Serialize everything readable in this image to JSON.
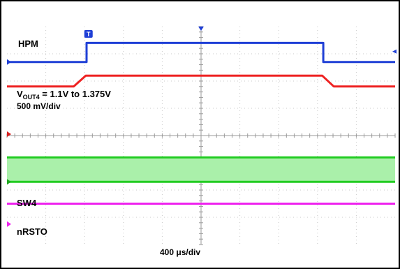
{
  "chart_data": {
    "type": "line",
    "title": "",
    "xlabel": "",
    "ylabel": "",
    "timebase": {
      "value": "400",
      "unit": "μs/div"
    },
    "divisions": {
      "x": 10,
      "y": 8
    },
    "grid": true,
    "grid_color": "#c8c8c8",
    "trigger_marker": {
      "label": "T",
      "x_div": 2.1
    },
    "series": [
      {
        "name": "HPM",
        "color": "#1f3fd6",
        "marker_color": "#1f3fd6",
        "marker_y_div": 1.3,
        "points": [
          [
            0,
            1.3
          ],
          [
            2.05,
            1.3
          ],
          [
            2.05,
            0.6
          ],
          [
            8.15,
            0.6
          ],
          [
            8.15,
            1.3
          ],
          [
            10,
            1.3
          ]
        ]
      },
      {
        "name": "V_OUT4",
        "label_main": "V",
        "label_sub": "OUT4",
        "label_rest": " = 1.1V to 1.375V",
        "scale": "500 mV/div",
        "color": "#ee2222",
        "marker_color": "#d62020",
        "marker_y_div": 3.95,
        "points": [
          [
            0,
            2.2
          ],
          [
            1.72,
            2.2
          ],
          [
            2.03,
            1.8
          ],
          [
            8.12,
            1.8
          ],
          [
            8.42,
            2.2
          ],
          [
            10,
            2.2
          ]
        ]
      },
      {
        "name": "SW4",
        "color": "#22cc22",
        "fill_color": "#aaf0aa",
        "marker_color": "#1faa1f",
        "marker_y_div": 5.7,
        "high_y_div": 4.8,
        "low_y_div": 5.7
      },
      {
        "name": "nRSTO",
        "color": "#ee22ee",
        "marker_color": "#ee22ee",
        "marker_y_div": 7.25,
        "points": [
          [
            0,
            6.5
          ],
          [
            10,
            6.5
          ]
        ]
      }
    ]
  }
}
